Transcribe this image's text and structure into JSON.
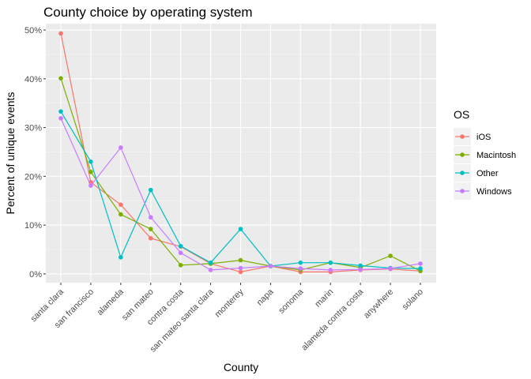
{
  "chart_data": {
    "type": "line",
    "title": "County choice by operating system",
    "xlabel": "County",
    "ylabel": "Percent of unique events",
    "ylim": [
      -1.8,
      51.3
    ],
    "y_ticks": [
      0,
      10,
      20,
      30,
      40,
      50
    ],
    "y_tick_labels": [
      "0%",
      "10%",
      "20%",
      "30%",
      "40%",
      "50%"
    ],
    "grid": true,
    "legend_position": "right",
    "legend_title": "OS",
    "categories": [
      "santa clara",
      "san francisco",
      "alameda",
      "san mateo",
      "contra costa",
      "san mateo santa clara",
      "monterey",
      "napa",
      "sonoma",
      "marin",
      "alameda contra costa",
      "anywhere",
      "solano"
    ],
    "series": [
      {
        "name": "iOS",
        "color": "#F8766D",
        "values": [
          49.3,
          18.8,
          14.2,
          7.3,
          5.6,
          2.1,
          0.4,
          1.6,
          0.4,
          0.4,
          0.8,
          1.0,
          0.6
        ]
      },
      {
        "name": "Macintosh",
        "color": "#7CAE00",
        "values": [
          40.1,
          20.9,
          12.2,
          9.2,
          1.8,
          2.1,
          2.8,
          1.6,
          0.8,
          2.3,
          1.3,
          3.7,
          0.6
        ]
      },
      {
        "name": "Other",
        "color": "#00BFC4",
        "values": [
          33.3,
          23.0,
          3.4,
          17.2,
          5.7,
          2.3,
          9.2,
          1.6,
          2.3,
          2.3,
          1.7,
          1.2,
          1.1
        ]
      },
      {
        "name": "Windows",
        "color": "#C77CFF",
        "values": [
          31.9,
          18.1,
          25.9,
          11.6,
          4.3,
          0.8,
          1.2,
          1.6,
          1.1,
          0.8,
          0.9,
          1.1,
          2.1
        ]
      }
    ]
  }
}
